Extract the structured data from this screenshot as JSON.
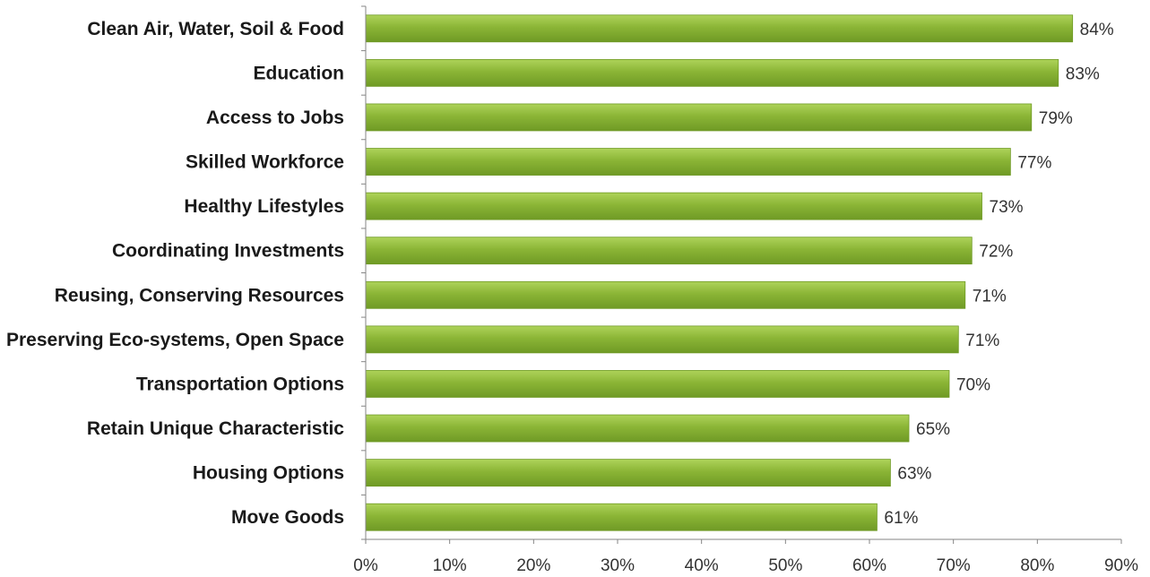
{
  "chart_data": {
    "type": "bar",
    "orientation": "horizontal",
    "categories": [
      "Clean Air, Water, Soil & Food",
      "Education",
      "Access to Jobs",
      "Skilled Workforce",
      "Healthy Lifestyles",
      "Coordinating Investments",
      "Reusing, Conserving Resources",
      "Preserving Eco-systems, Open Space",
      "Transportation Options",
      "Retain Unique Characteristic",
      "Housing Options",
      "Move Goods"
    ],
    "values": [
      84.2,
      82.5,
      79.3,
      76.8,
      73.4,
      72.2,
      71.4,
      70.6,
      69.5,
      64.7,
      62.5,
      60.9
    ],
    "value_labels": [
      "84%",
      "83%",
      "79%",
      "77%",
      "73%",
      "72%",
      "71%",
      "71%",
      "70%",
      "65%",
      "63%",
      "61%"
    ],
    "x_ticks": [
      "0%",
      "10%",
      "20%",
      "30%",
      "40%",
      "50%",
      "60%",
      "70%",
      "80%",
      "90%"
    ],
    "xlim": [
      0,
      90
    ],
    "title": "",
    "xlabel": "",
    "ylabel": "",
    "grid": false,
    "bar_color": "#8bb536",
    "bar_color_light": "#aed35a",
    "bar_color_dark": "#6f9a25"
  }
}
